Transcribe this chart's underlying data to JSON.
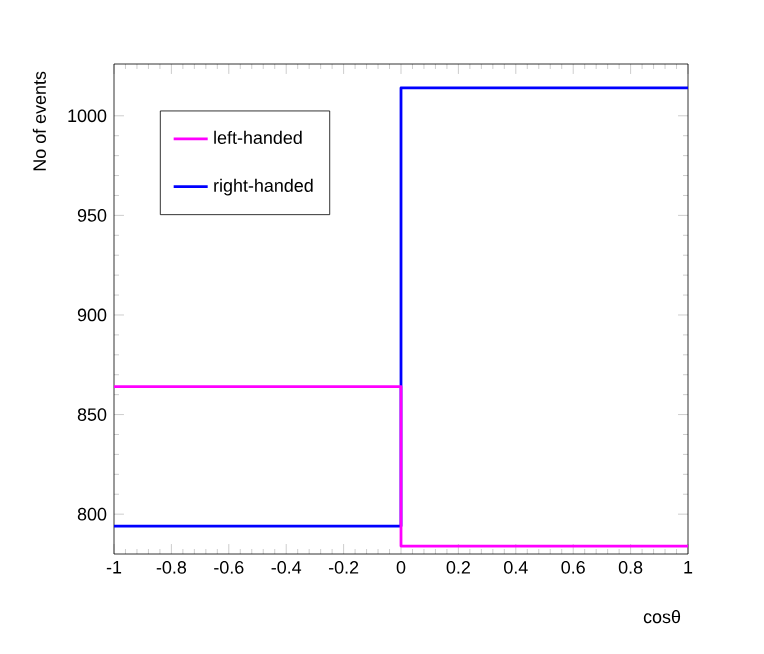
{
  "chart_data": {
    "type": "histogram",
    "xlabel": "cosθ",
    "ylabel": "No of events",
    "bins": [
      -1,
      0,
      1
    ],
    "series": [
      {
        "name": "left-handed",
        "color": "#ff00ff",
        "values": [
          864,
          784
        ]
      },
      {
        "name": "right-handed",
        "color": "#0000ff",
        "values": [
          794,
          1014
        ]
      }
    ],
    "xlim": [
      -1,
      1
    ],
    "ylim": [
      780,
      1026
    ],
    "xticks": [
      -1,
      -0.8,
      -0.6,
      -0.4,
      -0.2,
      0,
      0.2,
      0.4,
      0.6,
      0.8,
      1
    ],
    "yticks": [
      800,
      850,
      900,
      950,
      1000
    ],
    "grid": false,
    "legend": "top left"
  }
}
